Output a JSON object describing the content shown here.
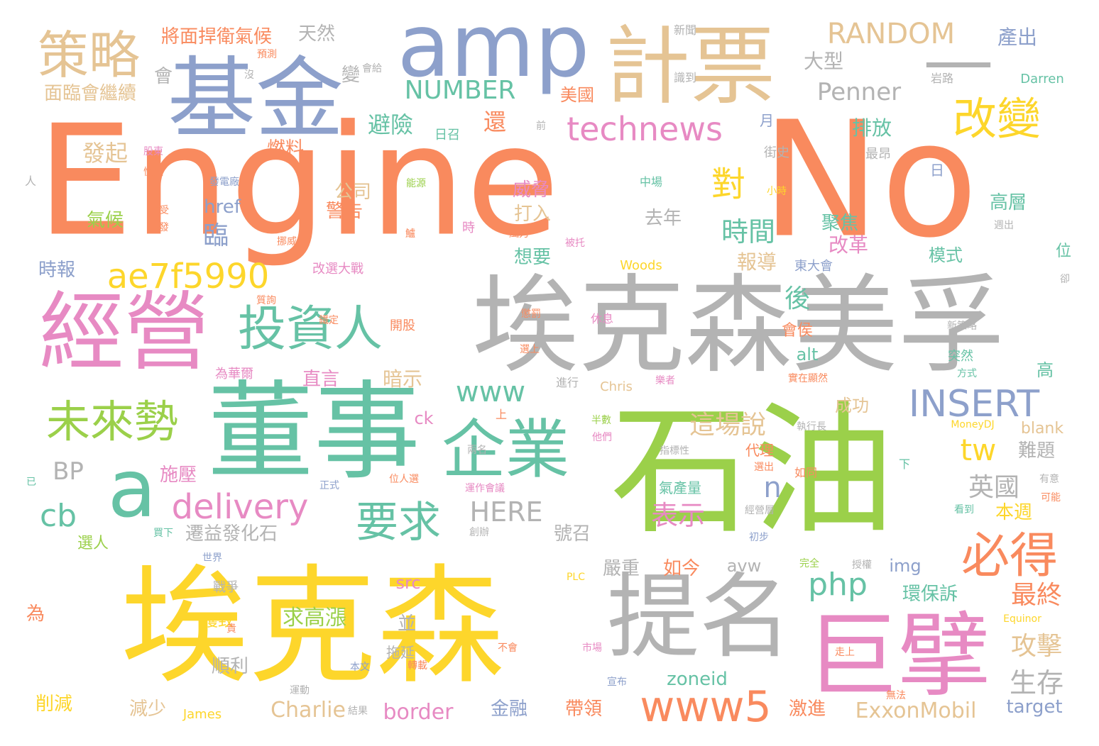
{
  "palette": {
    "orange": "#f98a5e",
    "green": "#9bd04a",
    "yellow": "#fdd62b",
    "gray": "#b3b3b3",
    "blue": "#8da0cb",
    "pink": "#e78ac3",
    "teal": "#66c2a5",
    "tan": "#e5c494"
  },
  "words": [
    {
      "text": "Engine",
      "color": "orange"
    },
    {
      "text": "No",
      "color": "orange"
    },
    {
      "text": "石油",
      "color": "green"
    },
    {
      "text": "埃克森",
      "color": "yellow"
    },
    {
      "text": "埃克森美孚",
      "color": "gray"
    },
    {
      "text": "董事",
      "color": "teal"
    },
    {
      "text": "基金",
      "color": "blue"
    },
    {
      "text": "amp",
      "color": "blue"
    },
    {
      "text": "計票",
      "color": "tan"
    },
    {
      "text": "經營",
      "color": "pink"
    },
    {
      "text": "提名",
      "color": "gray"
    },
    {
      "text": "巨擘",
      "color": "pink"
    },
    {
      "text": "企業",
      "color": "teal"
    },
    {
      "text": "—",
      "color": "gray"
    },
    {
      "text": "策略",
      "color": "tan"
    },
    {
      "text": "a",
      "color": "teal"
    },
    {
      "text": "投資人",
      "color": "teal"
    },
    {
      "text": "未來勢",
      "color": "green"
    },
    {
      "text": "改變",
      "color": "yellow"
    },
    {
      "text": "必得",
      "color": "orange"
    },
    {
      "text": "要求",
      "color": "teal"
    },
    {
      "text": "www5",
      "color": "orange"
    },
    {
      "text": "ae7f5990",
      "color": "yellow"
    },
    {
      "text": "technews",
      "color": "pink"
    },
    {
      "text": "RANDOM",
      "color": "tan"
    },
    {
      "text": "INSERT",
      "color": "blue"
    },
    {
      "text": "delivery",
      "color": "pink"
    },
    {
      "text": "www",
      "color": "teal"
    },
    {
      "text": "對",
      "color": "yellow"
    },
    {
      "text": "NUMBER",
      "color": "teal"
    },
    {
      "text": "Penner",
      "color": "gray"
    },
    {
      "text": "時間",
      "color": "teal"
    },
    {
      "text": "php",
      "color": "teal"
    },
    {
      "text": "HERE",
      "color": "gray"
    },
    {
      "text": "表示",
      "color": "pink"
    },
    {
      "text": "這場說",
      "color": "tan"
    },
    {
      "text": "cb",
      "color": "teal"
    },
    {
      "text": "tw",
      "color": "yellow"
    },
    {
      "text": "n",
      "color": "blue"
    },
    {
      "text": "BP",
      "color": "gray"
    },
    {
      "text": "英國",
      "color": "gray"
    },
    {
      "text": "生存",
      "color": "gray"
    },
    {
      "text": "攻擊",
      "color": "tan"
    },
    {
      "text": "最終",
      "color": "orange"
    },
    {
      "text": "發起",
      "color": "tan"
    },
    {
      "text": "避險",
      "color": "teal"
    },
    {
      "text": "求高漲",
      "color": "green"
    },
    {
      "text": "還",
      "color": "orange"
    },
    {
      "text": "大型",
      "color": "gray"
    },
    {
      "text": "臨",
      "color": "blue"
    },
    {
      "text": "zoneid",
      "color": "teal"
    },
    {
      "text": "ExxonMobil",
      "color": "tan"
    },
    {
      "text": "border",
      "color": "pink"
    },
    {
      "text": "Charlie",
      "color": "tan"
    },
    {
      "text": "target",
      "color": "blue"
    },
    {
      "text": "blank",
      "color": "tan"
    },
    {
      "text": "alt",
      "color": "teal"
    },
    {
      "text": "img",
      "color": "blue"
    },
    {
      "text": "avw",
      "color": "gray"
    },
    {
      "text": "src",
      "color": "pink"
    },
    {
      "text": "href",
      "color": "blue"
    },
    {
      "text": "ck",
      "color": "pink"
    },
    {
      "text": "公司",
      "color": "tan"
    },
    {
      "text": "警告",
      "color": "orange"
    },
    {
      "text": "將面捍衛氣候",
      "color": "orange"
    },
    {
      "text": "面臨會繼續",
      "color": "tan"
    },
    {
      "text": "天然",
      "color": "gray"
    },
    {
      "text": "產出",
      "color": "blue"
    },
    {
      "text": "排放",
      "color": "teal"
    },
    {
      "text": "高層",
      "color": "teal"
    },
    {
      "text": "聚焦",
      "color": "teal"
    },
    {
      "text": "改革",
      "color": "pink"
    },
    {
      "text": "報導",
      "color": "tan"
    },
    {
      "text": "後",
      "color": "teal"
    },
    {
      "text": "會侯",
      "color": "orange"
    },
    {
      "text": "美國",
      "color": "orange"
    },
    {
      "text": "變",
      "color": "gray"
    },
    {
      "text": "會",
      "color": "gray"
    },
    {
      "text": "燃料",
      "color": "orange"
    },
    {
      "text": "氣候",
      "color": "green"
    },
    {
      "text": "時報",
      "color": "blue"
    },
    {
      "text": "威脅",
      "color": "pink"
    },
    {
      "text": "打入",
      "color": "tan"
    },
    {
      "text": "想要",
      "color": "teal"
    },
    {
      "text": "去年",
      "color": "gray"
    },
    {
      "text": "月",
      "color": "blue"
    },
    {
      "text": "日",
      "color": "blue"
    },
    {
      "text": "模式",
      "color": "teal"
    },
    {
      "text": "位",
      "color": "teal"
    },
    {
      "text": "直言",
      "color": "pink"
    },
    {
      "text": "暗示",
      "color": "tan"
    },
    {
      "text": "成功",
      "color": "tan"
    },
    {
      "text": "難題",
      "color": "gray"
    },
    {
      "text": "本週",
      "color": "yellow"
    },
    {
      "text": "高",
      "color": "teal"
    },
    {
      "text": "施壓",
      "color": "pink"
    },
    {
      "text": "遷益發化石",
      "color": "gray"
    },
    {
      "text": "號召",
      "color": "gray"
    },
    {
      "text": "嚴重",
      "color": "gray"
    },
    {
      "text": "如今",
      "color": "orange"
    },
    {
      "text": "環保訴",
      "color": "teal"
    },
    {
      "text": "帶領",
      "color": "orange"
    },
    {
      "text": "激進",
      "color": "orange"
    },
    {
      "text": "金融",
      "color": "blue"
    },
    {
      "text": "順利",
      "color": "gray"
    },
    {
      "text": "獲致",
      "color": "yellow"
    },
    {
      "text": "削減",
      "color": "yellow"
    },
    {
      "text": "減少",
      "color": "tan"
    },
    {
      "text": "並",
      "color": "gray"
    },
    {
      "text": "選人",
      "color": "green"
    },
    {
      "text": "代理",
      "color": "orange"
    },
    {
      "text": "氣產量",
      "color": "teal"
    },
    {
      "text": "為",
      "color": "orange"
    },
    {
      "text": "戰爭",
      "color": "gray"
    },
    {
      "text": "拖延",
      "color": "gray"
    },
    {
      "text": "James",
      "color": "yellow"
    },
    {
      "text": "Chris",
      "color": "tan"
    },
    {
      "text": "Woods",
      "color": "yellow"
    },
    {
      "text": "Darren",
      "color": "teal"
    },
    {
      "text": "PLC",
      "color": "yellow"
    },
    {
      "text": "MoneyDJ",
      "color": "yellow"
    },
    {
      "text": "Equinor",
      "color": "yellow"
    },
    {
      "text": "人",
      "color": "gray"
    },
    {
      "text": "改選大戰",
      "color": "pink"
    },
    {
      "text": "為華爾",
      "color": "pink"
    },
    {
      "text": "東大會",
      "color": "blue"
    },
    {
      "text": "新聞",
      "color": "gray"
    },
    {
      "text": "預測",
      "color": "orange"
    },
    {
      "text": "會給",
      "color": "gray"
    },
    {
      "text": "沒",
      "color": "gray"
    },
    {
      "text": "識到",
      "color": "gray"
    },
    {
      "text": "岩路",
      "color": "gray"
    },
    {
      "text": "前",
      "color": "gray"
    },
    {
      "text": "最昂",
      "color": "gray"
    },
    {
      "text": "街史",
      "color": "gray"
    },
    {
      "text": "小時",
      "color": "yellow"
    },
    {
      "text": "中場",
      "color": "teal"
    },
    {
      "text": "發電廠",
      "color": "blue"
    },
    {
      "text": "能源",
      "color": "green"
    },
    {
      "text": "接受",
      "color": "orange"
    },
    {
      "text": "開發",
      "color": "orange"
    },
    {
      "text": "股東",
      "color": "pink"
    },
    {
      "text": "憬遭",
      "color": "orange"
    },
    {
      "text": "挪威",
      "color": "orange"
    },
    {
      "text": "鱸",
      "color": "orange"
    },
    {
      "text": "時",
      "color": "pink"
    },
    {
      "text": "風力",
      "color": "orange"
    },
    {
      "text": "被托",
      "color": "pink"
    },
    {
      "text": "週出",
      "color": "gray"
    },
    {
      "text": "卻",
      "color": "gray"
    },
    {
      "text": "質詢",
      "color": "orange"
    },
    {
      "text": "鐵定",
      "color": "orange"
    },
    {
      "text": "開股",
      "color": "orange"
    },
    {
      "text": "懲罰",
      "color": "orange"
    },
    {
      "text": "休息",
      "color": "pink"
    },
    {
      "text": "新策略",
      "color": "gray"
    },
    {
      "text": "選上",
      "color": "orange"
    },
    {
      "text": "突然",
      "color": "teal"
    },
    {
      "text": "方式",
      "color": "teal"
    },
    {
      "text": "實在顯然",
      "color": "orange"
    },
    {
      "text": "樂者",
      "color": "pink"
    },
    {
      "text": "進行",
      "color": "gray"
    },
    {
      "text": "上",
      "color": "orange"
    },
    {
      "text": "半數",
      "color": "green"
    },
    {
      "text": "他們",
      "color": "pink"
    },
    {
      "text": "執行長",
      "color": "gray"
    },
    {
      "text": "指標性",
      "color": "gray"
    },
    {
      "text": "兩名",
      "color": "gray"
    },
    {
      "text": "已",
      "color": "teal"
    },
    {
      "text": "正式",
      "color": "blue"
    },
    {
      "text": "位人選",
      "color": "orange"
    },
    {
      "text": "運作會議",
      "color": "pink"
    },
    {
      "text": "選出",
      "color": "orange"
    },
    {
      "text": "如同",
      "color": "orange"
    },
    {
      "text": "下",
      "color": "teal"
    },
    {
      "text": "有意",
      "color": "gray"
    },
    {
      "text": "可能",
      "color": "orange"
    },
    {
      "text": "經營層",
      "color": "gray"
    },
    {
      "text": "看到",
      "color": "teal"
    },
    {
      "text": "買下",
      "color": "teal"
    },
    {
      "text": "創辦",
      "color": "gray"
    },
    {
      "text": "初步",
      "color": "blue"
    },
    {
      "text": "世界",
      "color": "blue"
    },
    {
      "text": "完全",
      "color": "green"
    },
    {
      "text": "授權",
      "color": "gray"
    },
    {
      "text": "貴",
      "color": "orange"
    },
    {
      "text": "不會",
      "color": "orange"
    },
    {
      "text": "市場",
      "color": "pink"
    },
    {
      "text": "走上",
      "color": "orange"
    },
    {
      "text": "本文",
      "color": "blue"
    },
    {
      "text": "轉載",
      "color": "orange"
    },
    {
      "text": "宣布",
      "color": "blue"
    },
    {
      "text": "無法",
      "color": "orange"
    },
    {
      "text": "運動",
      "color": "gray"
    },
    {
      "text": "結果",
      "color": "gray"
    },
    {
      "text": "日召",
      "color": "teal"
    }
  ]
}
